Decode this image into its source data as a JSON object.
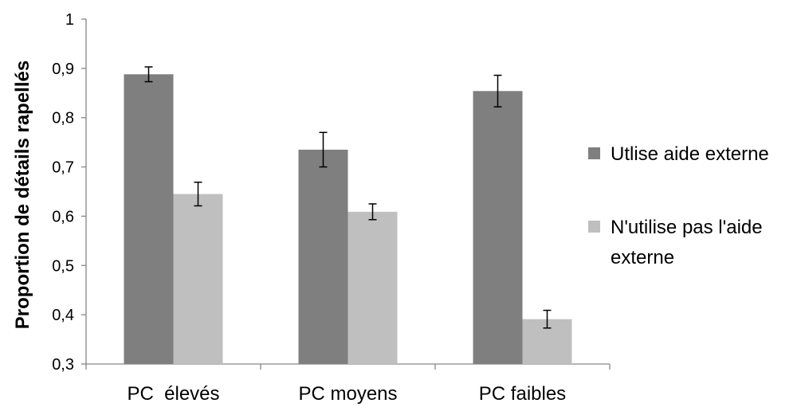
{
  "chart_data": {
    "type": "bar",
    "ylabel": "Proportion de détails rapellés",
    "xlabel": "",
    "ylim": [
      0.3,
      1.0
    ],
    "y_ticks": [
      0.3,
      0.4,
      0.5,
      0.6,
      0.7,
      0.8,
      0.9,
      1
    ],
    "y_tick_labels": [
      "0,3",
      "0,4",
      "0,5",
      "0,6",
      "0,7",
      "0,8",
      "0,9",
      "1"
    ],
    "categories": [
      "PC  élevés",
      "PC moyens",
      "PC faibles"
    ],
    "series": [
      {
        "name": "Utlise aide externe",
        "color": "#7f7f7f",
        "values": [
          0.888,
          0.735,
          0.854
        ],
        "error": [
          0.015,
          0.035,
          0.032
        ]
      },
      {
        "name": "N'utilise pas l'aide externe",
        "color": "#bfbfbf",
        "values": [
          0.645,
          0.609,
          0.391
        ],
        "error": [
          0.024,
          0.016,
          0.018
        ]
      }
    ],
    "legend_position": "right",
    "grid": false
  }
}
